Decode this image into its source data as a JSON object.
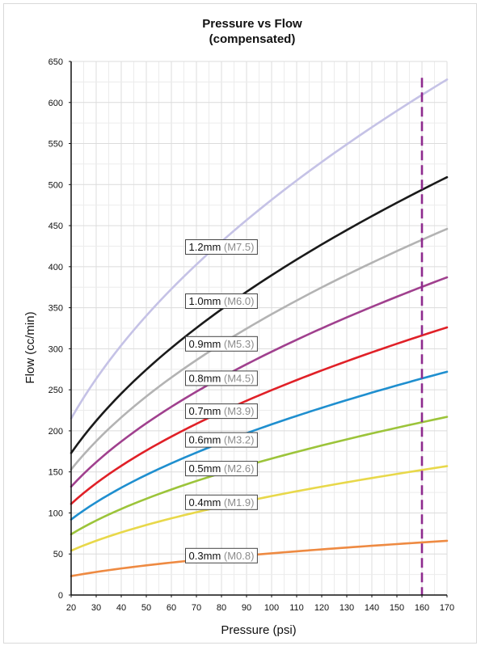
{
  "chart_data": {
    "type": "line",
    "title": [
      "Pressure vs Flow",
      "(compensated)"
    ],
    "xlabel": "Pressure (psi)",
    "ylabel": "Flow (cc/min)",
    "xlim": [
      20,
      170
    ],
    "ylim": [
      0,
      650
    ],
    "x_ticks": [
      20,
      30,
      40,
      50,
      60,
      70,
      80,
      90,
      100,
      110,
      120,
      130,
      140,
      150,
      160,
      170
    ],
    "y_ticks": [
      0,
      50,
      100,
      150,
      200,
      250,
      300,
      350,
      400,
      450,
      500,
      550,
      600,
      650
    ],
    "grid": true,
    "reference_line": {
      "x": 160,
      "color": "#8e2a8e",
      "style": "dashed"
    },
    "series": [
      {
        "name": "1.2mm",
        "code": "(M7.5)",
        "color": "#c5c2e6",
        "x": [
          20,
          170
        ],
        "y": [
          215,
          628
        ],
        "label_anchor": [
          80,
          424
        ]
      },
      {
        "name": "1.0mm",
        "code": "(M6.0)",
        "color": "#1a1a1a",
        "x": [
          20,
          170
        ],
        "y": [
          173,
          509
        ],
        "label_anchor": [
          80,
          358
        ]
      },
      {
        "name": "0.9mm",
        "code": "(M5.3)",
        "color": "#b3b3b3",
        "x": [
          20,
          170
        ],
        "y": [
          153,
          446
        ],
        "label_anchor": [
          80,
          306
        ]
      },
      {
        "name": "0.8mm",
        "code": "(M4.5)",
        "color": "#a0408e",
        "x": [
          20,
          170
        ],
        "y": [
          132,
          387
        ],
        "label_anchor": [
          80,
          264
        ]
      },
      {
        "name": "0.7mm",
        "code": "(M3.9)",
        "color": "#e02027",
        "x": [
          20,
          170
        ],
        "y": [
          111,
          326
        ],
        "label_anchor": [
          80,
          224
        ]
      },
      {
        "name": "0.6mm",
        "code": "(M3.2)",
        "color": "#1f8fcf",
        "x": [
          20,
          170
        ],
        "y": [
          92,
          272
        ],
        "label_anchor": [
          80,
          189
        ]
      },
      {
        "name": "0.5mm",
        "code": "(M2.6)",
        "color": "#9cc43a",
        "x": [
          20,
          170
        ],
        "y": [
          74,
          217
        ],
        "label_anchor": [
          80,
          154
        ]
      },
      {
        "name": "0.4mm",
        "code": "(M1.9)",
        "color": "#e8d84a",
        "x": [
          20,
          170
        ],
        "y": [
          54,
          157
        ],
        "label_anchor": [
          80,
          113
        ]
      },
      {
        "name": "0.3mm",
        "code": "(M0.8)",
        "color": "#ee8a42",
        "x": [
          20,
          170
        ],
        "y": [
          23,
          66
        ],
        "label_anchor": [
          80,
          48
        ]
      }
    ]
  }
}
